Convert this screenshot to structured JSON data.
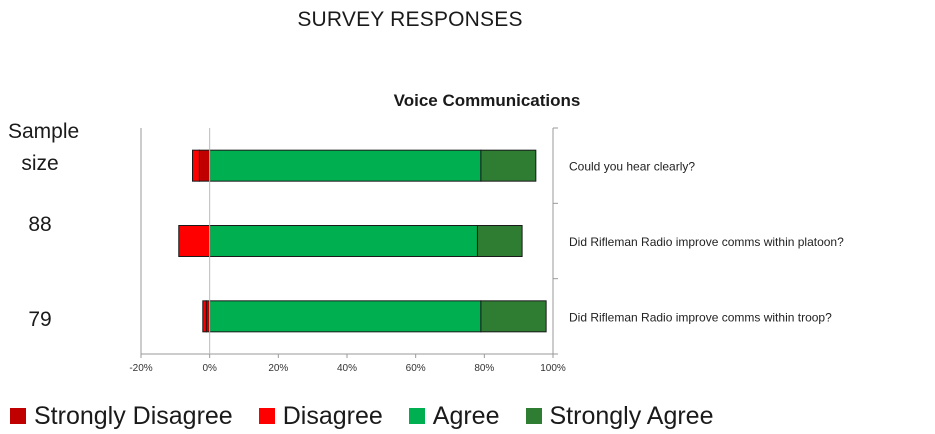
{
  "header": {
    "title": "SURVEY RESPONSES"
  },
  "sample": {
    "label_line1": "Sample",
    "label_line2": "size",
    "values": [
      "",
      "88",
      "79"
    ]
  },
  "chart_data": {
    "type": "bar",
    "orientation": "horizontal",
    "stacked": true,
    "title": "Voice Communications",
    "categories": [
      "Could you hear clearly?",
      "Did Rifleman Radio improve comms within platoon?",
      "Did Rifleman Radio improve comms within troop?"
    ],
    "series": [
      {
        "name": "Strongly Disagree",
        "color": "#c00000",
        "values": [
          -3,
          0,
          -1
        ]
      },
      {
        "name": "Disagree",
        "color": "#ff0000",
        "values": [
          -2,
          -9,
          -1
        ]
      },
      {
        "name": "Agree",
        "color": "#00b050",
        "values": [
          79,
          78,
          79
        ]
      },
      {
        "name": "Strongly Agree",
        "color": "#2e7d32",
        "values": [
          16,
          13,
          19
        ]
      }
    ],
    "xlim": [
      -20,
      100
    ],
    "xticks": [
      -20,
      0,
      20,
      40,
      60,
      80,
      100
    ],
    "xtick_labels": [
      "-20%",
      "0%",
      "20%",
      "40%",
      "60%",
      "80%",
      "100%"
    ],
    "xlabel": "",
    "ylabel": "",
    "grid": false,
    "legend_position": "bottom"
  }
}
